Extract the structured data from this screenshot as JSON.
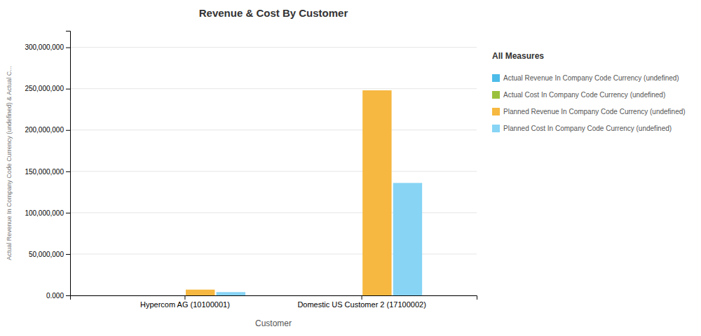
{
  "chart_data": {
    "type": "bar",
    "title": "Revenue & Cost By Customer",
    "xlabel": "Customer",
    "ylabel": "Actual Revenue In Company Code Currency (undefined) & Actual C...",
    "categories": [
      "Hypercom AG (10100001)",
      "Domestic US Customer 2 (17100002)"
    ],
    "series": [
      {
        "name": "Actual Revenue In Company Code Currency (undefined)",
        "color": "#4dbce9",
        "values": [
          0,
          0
        ]
      },
      {
        "name": "Actual Cost In Company Code Currency (undefined)",
        "color": "#9bc13c",
        "values": [
          0,
          0
        ]
      },
      {
        "name": "Planned Revenue In Company Code Currency (undefined)",
        "color": "#f6b840",
        "values": [
          7000000,
          248000000
        ]
      },
      {
        "name": "Planned Cost In Company Code Currency (undefined)",
        "color": "#87d4f5",
        "values": [
          4000000,
          136000000
        ]
      }
    ],
    "ylim": [
      0,
      320000000
    ],
    "yticks": [
      {
        "value": 0,
        "label": "0.000"
      },
      {
        "value": 50000000,
        "label": "50,000,000"
      },
      {
        "value": 100000000,
        "label": "100,000,000"
      },
      {
        "value": 150000000,
        "label": "150,000,000"
      },
      {
        "value": 200000000,
        "label": "200,000,000"
      },
      {
        "value": 250000000,
        "label": "250,000,000"
      },
      {
        "value": 300000000,
        "label": "300,000,000"
      }
    ],
    "grid": true,
    "legend": "right",
    "legend_title": "All Measures"
  }
}
